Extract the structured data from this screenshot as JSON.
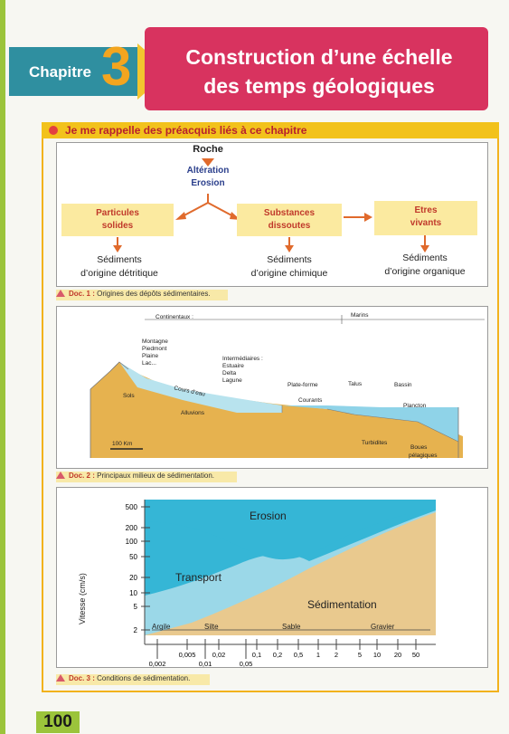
{
  "header": {
    "chapter_label": "Chapitre",
    "chapter_number": "3",
    "title_line1": "Construction d’une échelle",
    "title_line2": "des temps géologiques"
  },
  "section": {
    "title": "Je me rappelle des préacquis liés à ce chapitre"
  },
  "doc1": {
    "top": "Roche",
    "process_1": "Altération",
    "process_2": "Erosion",
    "boxes": [
      {
        "line1": "Particules",
        "line2": "solides"
      },
      {
        "line1": "Substances",
        "line2": "dissoutes"
      },
      {
        "line1": "Etres",
        "line2": "vivants"
      }
    ],
    "sediments": [
      {
        "line1": "Sédiments",
        "line2": "d’origine détritique"
      },
      {
        "line1": "Sédiments",
        "line2": "d’origine chimique"
      },
      {
        "line1": "Sédiments",
        "line2": "d’origine organique"
      }
    ],
    "caption_doc": "Doc. 1 :",
    "caption_text": "Origines des dépôts sédimentaires."
  },
  "doc2": {
    "continental": "Continentaux :",
    "marine": "Marins",
    "continental_list": [
      "Montagne",
      "Piedmont",
      "Plaine",
      "Lac..."
    ],
    "intermediate_list": [
      "Intermédiaires :",
      "Estuaire",
      "Delta",
      "Lagune"
    ],
    "plateforme": "Plate-forme",
    "talus": "Talus",
    "bassin": "Bassin",
    "sols": "Sols",
    "cours_eau": "Cours d’eau",
    "alluvions": "Alluvions",
    "courants": "Courants",
    "plancton": "Plancton",
    "turbidites": "Turbidites",
    "boues_1": "Boues",
    "boues_2": "pélagiques",
    "scale": "100 Km",
    "caption_doc": "Doc. 2 :",
    "caption_text": "Principaux milieux de sédimentation."
  },
  "doc3": {
    "ylabel": "Vitesse (cm/s)",
    "yticks": [
      "500",
      "200",
      "100",
      "50",
      "20",
      "10",
      "5",
      "2"
    ],
    "xticks_top": [
      "0,005",
      "0,02",
      "0,1",
      "0,2",
      "0,5",
      "1",
      "2",
      "5",
      "10",
      "20",
      "50"
    ],
    "xticks_bottom": [
      "0,002",
      "0,01",
      "0,05"
    ],
    "erosion": "Erosion",
    "transport": "Transport",
    "sedimentation": "Sédimentation",
    "particles": [
      "Argile",
      "Silte",
      "Sable",
      "Gravier"
    ],
    "caption_doc": "Doc. 3 :",
    "caption_text": "Conditions de sédimentation.",
    "colors": {
      "erosion": "#35b6d6",
      "transport": "#9bd8e8",
      "sedimentation": "#e9c98e"
    }
  },
  "page_number": "100"
}
